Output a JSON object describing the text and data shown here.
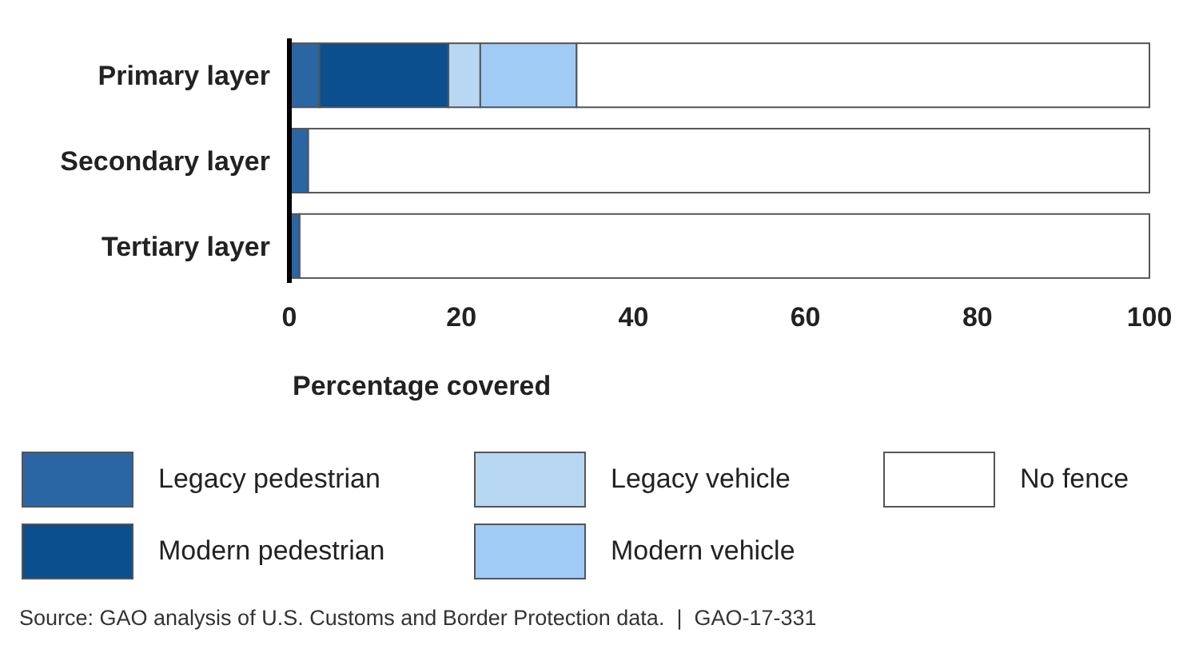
{
  "chart_data": {
    "type": "bar",
    "orientation": "horizontal",
    "stacked": true,
    "categories": [
      "Primary layer",
      "Secondary layer",
      "Tertiary layer"
    ],
    "series": [
      {
        "name": "Legacy pedestrian",
        "color": "#2a66a3",
        "values": [
          3.5,
          2.2,
          1.2
        ]
      },
      {
        "name": "Modern pedestrian",
        "color": "#0b4f8e",
        "values": [
          15,
          0,
          0
        ]
      },
      {
        "name": "Legacy vehicle",
        "color": "#b8d7f3",
        "values": [
          3.7,
          0,
          0
        ]
      },
      {
        "name": "Modern vehicle",
        "color": "#9fcbf5",
        "values": [
          11.2,
          0,
          0
        ]
      },
      {
        "name": "No fence",
        "color": "#ffffff",
        "values": [
          66.6,
          97.8,
          98.8
        ]
      }
    ],
    "xlim": [
      0,
      100
    ],
    "xticks": [
      0,
      20,
      40,
      60,
      80,
      100
    ],
    "xlabel": "Percentage covered",
    "legend": "bottom",
    "annotations": [
      "Source: GAO analysis of U.S. Customs and Border Protection data.  |  GAO-17-331"
    ]
  }
}
